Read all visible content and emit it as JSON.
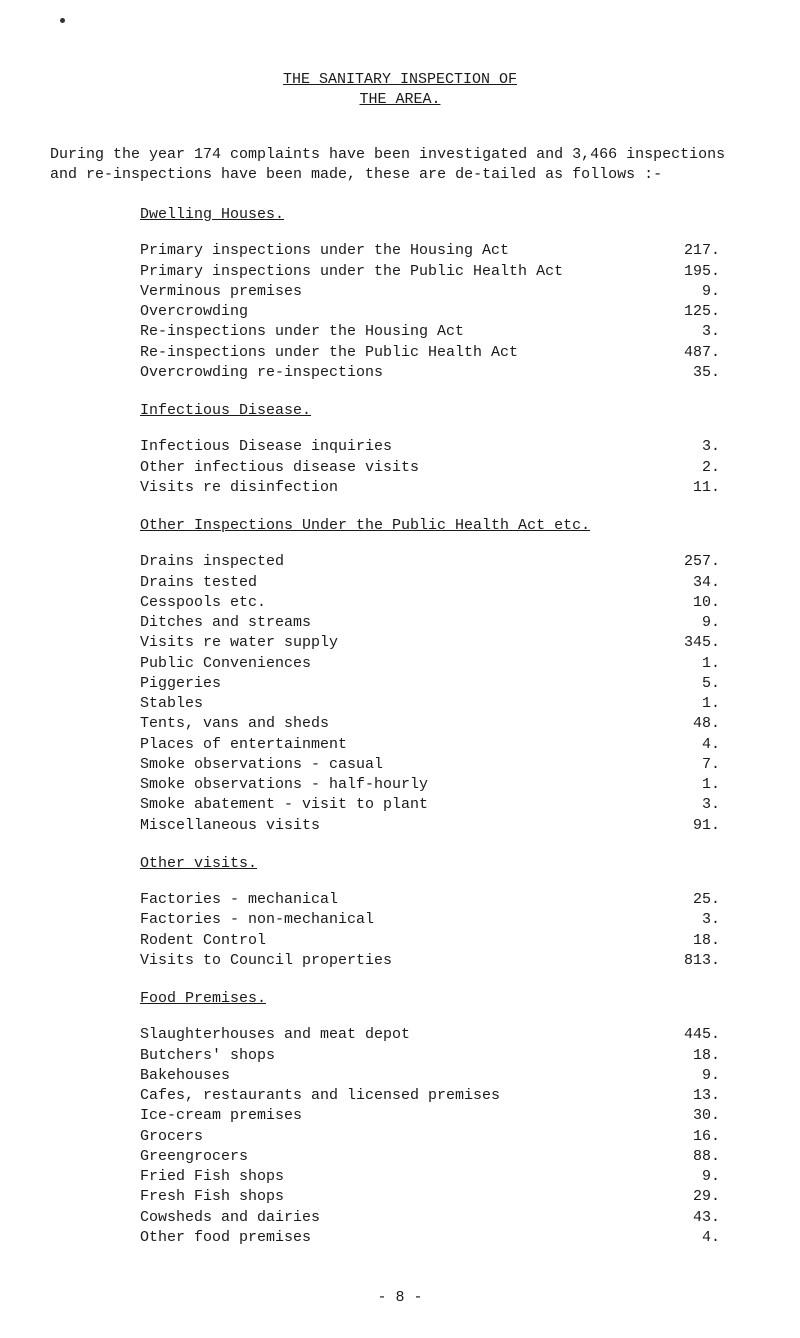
{
  "title": {
    "line1": "THE SANITARY INSPECTION OF",
    "line2": "THE AREA."
  },
  "intro": "During the year 174 complaints have been investigated and 3,466 inspections and re-inspections have been made, these are de-tailed as follows :-",
  "sections": {
    "dwelling": {
      "heading": "Dwelling Houses.",
      "items": [
        {
          "label": "Primary inspections under the Housing Act",
          "value": "217."
        },
        {
          "label": "Primary inspections under the Public Health Act",
          "value": "195."
        },
        {
          "label": "Verminous premises",
          "value": "9."
        },
        {
          "label": "Overcrowding",
          "value": "125."
        },
        {
          "label": "Re-inspections under the Housing Act",
          "value": "3."
        },
        {
          "label": "Re-inspections under the Public Health Act",
          "value": "487."
        },
        {
          "label": "Overcrowding re-inspections",
          "value": "35."
        }
      ]
    },
    "infectious": {
      "heading": "Infectious Disease.",
      "items": [
        {
          "label": "Infectious Disease inquiries",
          "value": "3."
        },
        {
          "label": "Other infectious disease visits",
          "value": "2."
        },
        {
          "label": "Visits re disinfection",
          "value": "11."
        }
      ]
    },
    "other_inspections": {
      "heading": "Other Inspections Under the Public Health Act etc.",
      "items": [
        {
          "label": "Drains inspected",
          "value": "257."
        },
        {
          "label": "Drains tested",
          "value": "34."
        },
        {
          "label": "Cesspools etc.",
          "value": "10."
        },
        {
          "label": "Ditches and streams",
          "value": "9."
        },
        {
          "label": "Visits re water supply",
          "value": "345."
        },
        {
          "label": "Public Conveniences",
          "value": "1."
        },
        {
          "label": "Piggeries",
          "value": "5."
        },
        {
          "label": "Stables",
          "value": "1."
        },
        {
          "label": "Tents, vans and sheds",
          "value": "48."
        },
        {
          "label": "Places of entertainment",
          "value": "4."
        },
        {
          "label": "Smoke observations - casual",
          "value": "7."
        },
        {
          "label": "Smoke observations - half-hourly",
          "value": "1."
        },
        {
          "label": "Smoke abatement - visit to plant",
          "value": "3."
        },
        {
          "label": "Miscellaneous visits",
          "value": "91."
        }
      ]
    },
    "other_visits": {
      "heading": "Other visits.",
      "items": [
        {
          "label": "Factories - mechanical",
          "value": "25."
        },
        {
          "label": "Factories - non-mechanical",
          "value": "3."
        },
        {
          "label": "Rodent Control",
          "value": "18."
        },
        {
          "label": "Visits to Council properties",
          "value": "813."
        }
      ]
    },
    "food": {
      "heading": "Food Premises.",
      "items": [
        {
          "label": "Slaughterhouses and meat depot",
          "value": "445."
        },
        {
          "label": "Butchers' shops",
          "value": "18."
        },
        {
          "label": "Bakehouses",
          "value": "9."
        },
        {
          "label": "Cafes, restaurants and licensed premises",
          "value": "13."
        },
        {
          "label": "Ice-cream premises",
          "value": "30."
        },
        {
          "label": "Grocers",
          "value": "16."
        },
        {
          "label": "Greengrocers",
          "value": "88."
        },
        {
          "label": "Fried Fish shops",
          "value": "9."
        },
        {
          "label": "Fresh Fish shops",
          "value": "29."
        },
        {
          "label": "Cowsheds and dairies",
          "value": "43."
        },
        {
          "label": "Other food premises",
          "value": "4."
        }
      ]
    }
  },
  "page_number": "- 8 -"
}
